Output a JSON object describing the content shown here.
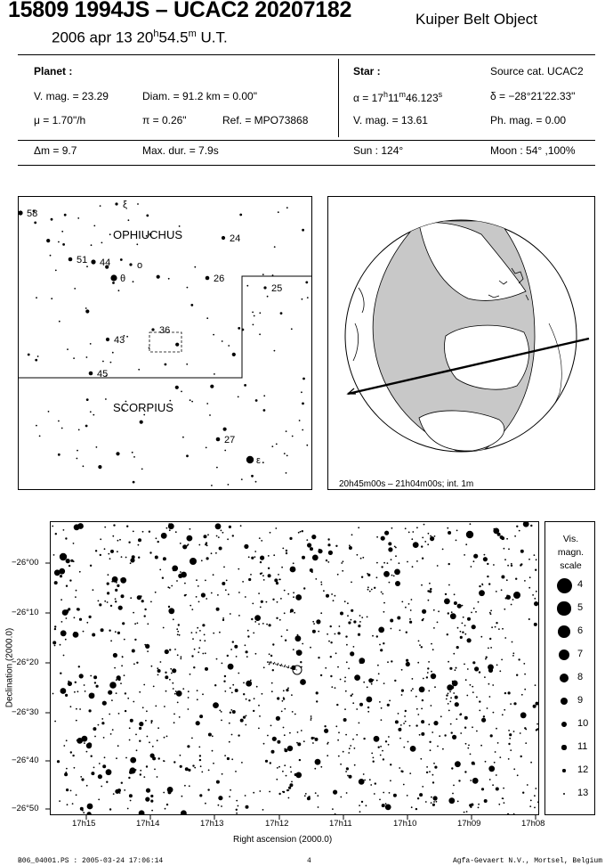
{
  "header": {
    "title": "15809 1994JS  –  UCAC2 20207182",
    "object_type": "Kuiper Belt Object",
    "date": "2006 apr 13  20",
    "date_h": "h",
    "date_min": "54.5",
    "date_m": "m",
    "date_ut": " U.T."
  },
  "planet": {
    "heading": "Planet :",
    "vmag": "V. mag. = 23.29",
    "diam": "Diam. = 91.2 km = 0.00\"",
    "mu": "μ =  1.70\"/h",
    "pi": "π =  0.26\"",
    "ref": "Ref. = MPO73868"
  },
  "star": {
    "heading": "Star :",
    "source": "Source cat.  UCAC2",
    "alpha_a": "α = 17",
    "alpha_h": "h",
    "alpha_b": "11",
    "alpha_m": "m",
    "alpha_c": "46.123",
    "alpha_s": "s",
    "delta": "δ = −28°21'22.33\"",
    "vmag": "V. mag. = 13.61",
    "phmag": "Ph. mag. =  0.00"
  },
  "summary": {
    "dm": "Δm = 9.7",
    "maxdur": "Max. dur. = 7.9s",
    "sun": "Sun : 124°",
    "moon": "Moon :  54° ,100%"
  },
  "constellation_map": {
    "ophiuchus": "OPHIUCHUS",
    "scorpius": "SCORPIUS",
    "stars": [
      {
        "label": "58",
        "x": 31,
        "y": 238
      },
      {
        "label": "ξ",
        "x": 139,
        "y": 228
      },
      {
        "label": "24",
        "x": 259,
        "y": 266
      },
      {
        "label": "51",
        "x": 87,
        "y": 290
      },
      {
        "label": "44",
        "x": 113,
        "y": 293
      },
      {
        "label": "o",
        "x": 155,
        "y": 296
      },
      {
        "label": "θ",
        "x": 136,
        "y": 311
      },
      {
        "label": "26",
        "x": 241,
        "y": 311
      },
      {
        "label": "25",
        "x": 306,
        "y": 322
      },
      {
        "label": "36",
        "x": 180,
        "y": 369
      },
      {
        "label": "43",
        "x": 129,
        "y": 380
      },
      {
        "label": "45",
        "x": 110,
        "y": 418
      },
      {
        "label": "27",
        "x": 253,
        "y": 492
      },
      {
        "label": "ε",
        "x": 289,
        "y": 515
      }
    ]
  },
  "globe": {
    "caption": "20h45m00s – 21h04m00s; int.  1m"
  },
  "chart_data": {
    "type": "scatter",
    "xlabel": "Right ascension (2000.0)",
    "ylabel": "Declination (2000.0)",
    "x_ticks": [
      "17h15",
      "17h14",
      "17h13",
      "17h12",
      "17h11",
      "17h10",
      "17h09",
      "17h08"
    ],
    "y_ticks": [
      "−26°00",
      "−26°10",
      "−26°20",
      "−26°30",
      "−26°40",
      "−26°50"
    ],
    "scale_title": [
      "Vis.",
      "magn.",
      "scale"
    ],
    "scale_mags": [
      4,
      5,
      6,
      7,
      8,
      9,
      10,
      11,
      12,
      13
    ]
  },
  "footer": {
    "left": "B06_04001.PS : 2005-03-24 17:06:14",
    "page": "4",
    "right": "Agfa-Gevaert N.V., Mortsel, Belgium"
  }
}
